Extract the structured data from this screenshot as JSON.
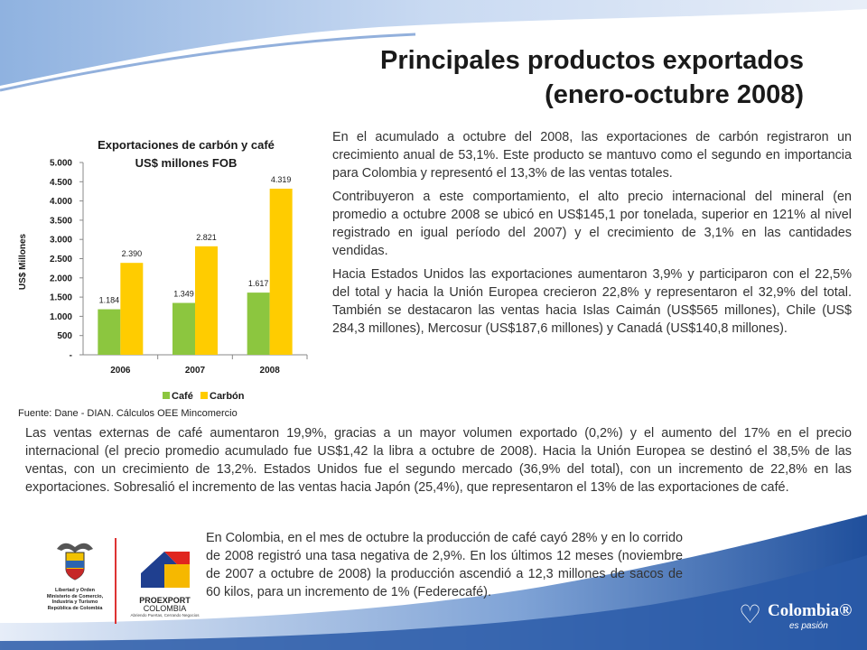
{
  "title": {
    "line1": "Principales productos exportados",
    "line2": "(enero-octubre 2008)"
  },
  "chart_data": {
    "type": "bar",
    "title": "Exportaciones de carbón y café",
    "subtitle": "US$ millones FOB",
    "ylabel": "US$ Millones",
    "categories": [
      "2006",
      "2007",
      "2008"
    ],
    "ylim": [
      0,
      5000
    ],
    "yticks": [
      0,
      500,
      1000,
      1500,
      2000,
      2500,
      3000,
      3500,
      4000,
      4500,
      5000
    ],
    "ytick_labels": [
      "-",
      "500",
      "1.000",
      "1.500",
      "2.000",
      "2.500",
      "3.000",
      "3.500",
      "4.000",
      "4.500",
      "5.000"
    ],
    "grid": false,
    "legend": "bottom",
    "series": [
      {
        "name": "Café",
        "color": "#8cc63f",
        "values": [
          1184,
          1349,
          1617
        ],
        "labels": [
          "1.184",
          "1.349",
          "1.617"
        ]
      },
      {
        "name": "Carbón",
        "color": "#ffcc00",
        "values": [
          2390,
          2821,
          4319
        ],
        "labels": [
          "2.390",
          "2.821",
          "4.319"
        ]
      }
    ]
  },
  "source": "Fuente: Dane - DIAN. Cálculos OEE Mincomercio",
  "right_text": {
    "p1": "En el acumulado a octubre del 2008, las exportaciones de carbón registraron un crecimiento anual de 53,1%. Este producto se mantuvo como el segundo en importancia para Colombia y representó el 13,3% de las ventas totales.",
    "p2": "Contribuyeron a este comportamiento, el alto precio internacional del mineral (en promedio a octubre 2008 se ubicó en US$145,1 por tonelada, superior en 121% al nivel registrado en igual período del 2007) y el crecimiento de 3,1% en las cantidades vendidas.",
    "p3": "Hacia Estados Unidos las exportaciones aumentaron 3,9% y participaron con el 22,5% del total y hacia la Unión Europea crecieron 22,8% y representaron el 32,9% del total. También se destacaron las ventas hacia Islas Caimán (US$565 millones), Chile (US$ 284,3 millones), Mercosur (US$187,6 millones) y Canadá (US$140,8 millones)."
  },
  "full_text": "Las ventas externas de café aumentaron 19,9%, gracias a un mayor volumen exportado (0,2%) y el aumento del 17% en el precio internacional (el precio promedio acumulado fue US$1,42 la libra a octubre de 2008). Hacia la Unión Europea se destinó el 38,5% de las ventas, con un crecimiento de 13,2%. Estados Unidos fue el segundo mercado (36,9% del total), con un incremento de 22,8% en las exportaciones. Sobresalió el incremento de las ventas hacia Japón (25,4%), que representaron el 13% de las exportaciones de café.",
  "bottom_text": "En Colombia, en el mes de octubre la producción de café cayó 28% y en lo corrido de 2008 registró una tasa negativa de 2,9%. En los últimos 12 meses (noviembre de 2007 a octubre de 2008) la producción ascendió a 12,3 millones de sacos de 60 kilos, para un incremento de 1% (Federecafé).",
  "logos": {
    "ministry_line1": "Libertad y Orden",
    "ministry_line2": "Ministerio de Comercio,",
    "ministry_line3": "Industria y Turismo",
    "ministry_line4": "República de Colombia",
    "proexport_name": "PROEXPORT",
    "proexport_country": "COLOMBIA",
    "proexport_tagline": "Abriendo Puertas, Cerrando Negocios",
    "colombia_brand": "Colombia®",
    "colombia_tagline": "es pasión"
  }
}
